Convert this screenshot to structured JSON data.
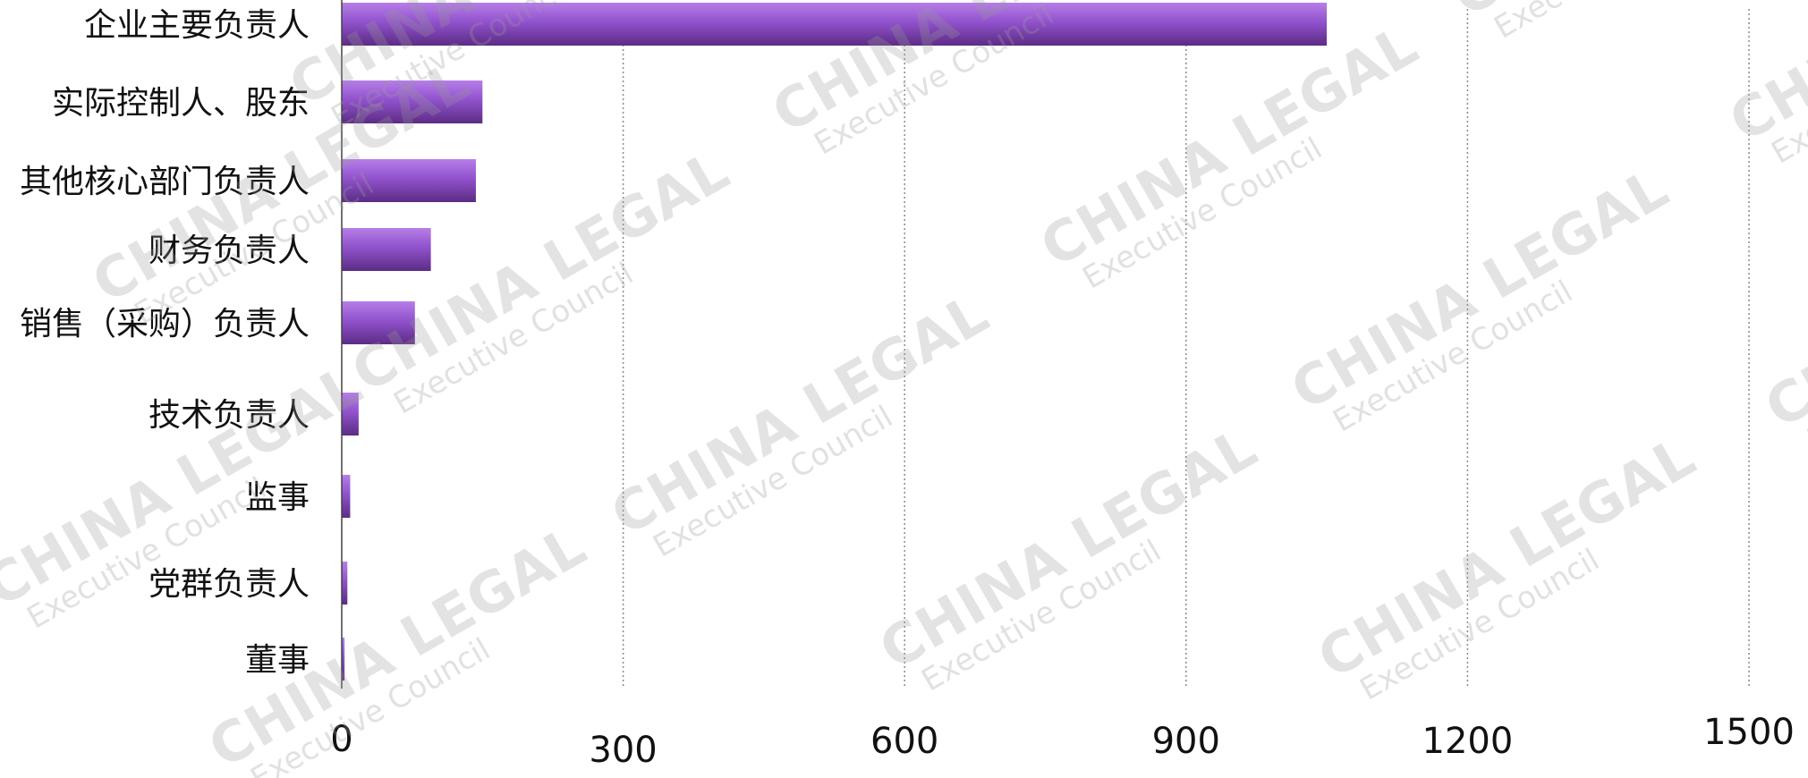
{
  "chart_data": {
    "type": "bar",
    "orientation": "horizontal",
    "title": "",
    "xlabel": "",
    "ylabel": "",
    "xlim": [
      0,
      1500
    ],
    "grid": "vertical dotted",
    "legend": "none",
    "categories": [
      "企业主要负责人",
      "实际控制人、股东",
      "其他核心部门负责人",
      "财务负责人",
      "销售（采购）负责人",
      "技术负责人",
      "监事",
      "党群负责人",
      "董事"
    ],
    "values": [
      1050,
      150,
      143,
      95,
      78,
      18,
      9,
      6,
      3
    ],
    "x_ticks": [
      "0",
      "300",
      "600",
      "900",
      "1200",
      "1500"
    ],
    "bar_colors": {
      "top": "#b67ee8",
      "mid": "#9152cc",
      "bottom": "#5c2c85"
    }
  },
  "watermark": {
    "line1": "CHINA LEGAL",
    "line2": "Executive Council"
  }
}
